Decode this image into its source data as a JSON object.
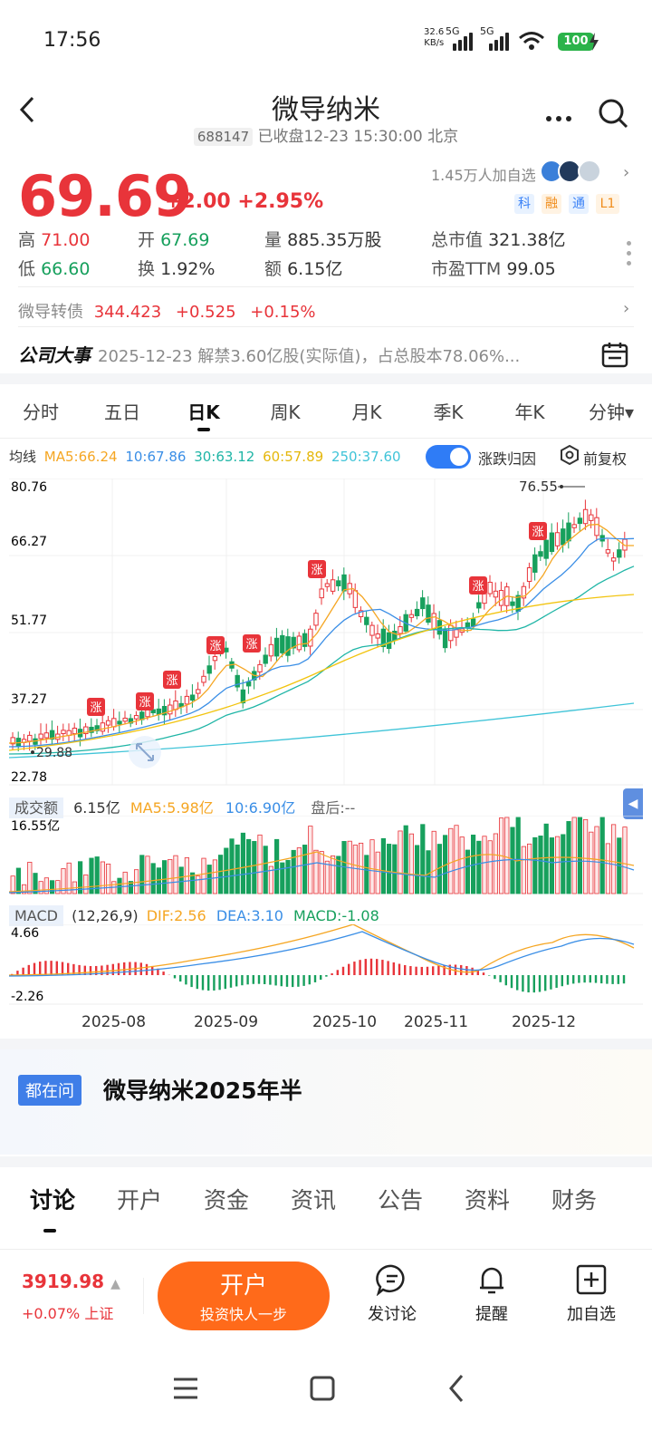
{
  "status": {
    "time": "17:56",
    "net_speed": "32.6",
    "net_unit": "KB/s",
    "net_type1": "5G",
    "net_type2": "5G",
    "battery": "100"
  },
  "header": {
    "name": "微导纳米",
    "code": "688147",
    "status_text": "已收盘12-23 15:30:00 北京"
  },
  "quote": {
    "price": "69.69",
    "change": "+2.00",
    "change_pct": "+2.95%",
    "watchers": "1.45万人加自选",
    "tags": [
      "科",
      "融",
      "通",
      "L1"
    ],
    "high_label": "高",
    "high": "71.00",
    "open_label": "开",
    "open": "67.69",
    "volume_label": "量",
    "volume": "885.35万股",
    "mktcap_label": "总市值",
    "mktcap": "321.38亿",
    "low_label": "低",
    "low": "66.60",
    "turnover_label": "换",
    "turnover": "1.92%",
    "amount_label": "额",
    "amount": "6.15亿",
    "pe_label": "市盈TTM",
    "pe": "99.05"
  },
  "convertible": {
    "name": "微导转债",
    "price": "344.423",
    "change": "+0.525",
    "change_pct": "+0.15%"
  },
  "event": {
    "label": "公司大事",
    "text": "2025-12-23 解禁3.60亿股(实际值)，占总股本78.06%..."
  },
  "period_tabs": [
    "分时",
    "五日",
    "日K",
    "周K",
    "月K",
    "季K",
    "年K",
    "分钟▾"
  ],
  "ma_legend": {
    "label": "均线",
    "ma5": "MA5:66.24",
    "ma10": "10:67.86",
    "ma30": "30:63.12",
    "ma60": "60:57.89",
    "ma250": "250:37.60",
    "toggle_label": "涨跌归因",
    "fuquan_label": "前复权"
  },
  "kline": {
    "y_ticks": [
      "80.76",
      "66.27",
      "51.77",
      "37.27",
      "22.78"
    ],
    "max_label": "76.55",
    "min_label": "29.88",
    "badge": "涨"
  },
  "volume": {
    "label": "成交额",
    "value": "6.15亿",
    "ma5": "MA5:5.98亿",
    "ma10": "10:6.90亿",
    "after": "盘后:--",
    "max_tick": "16.55亿"
  },
  "macd": {
    "label": "MACD",
    "params": "(12,26,9)",
    "dif": "DIF:2.56",
    "dea": "DEA:3.10",
    "macd": "MACD:-1.08",
    "top_tick": "4.66",
    "bottom_tick": "-2.26"
  },
  "x_axis": [
    "2025-08",
    "2025-09",
    "2025-10",
    "2025-11",
    "2025-12"
  ],
  "ask": {
    "tag": "都在问",
    "title": "微导纳米2025年半"
  },
  "bottom_tabs": [
    "讨论",
    "开户",
    "资金",
    "资讯",
    "公告",
    "资料",
    "财务"
  ],
  "action_bar": {
    "index_value": "3919.98",
    "index_change": "+0.07% 上证",
    "open_main": "开户",
    "open_sub": "投资快人一步",
    "discuss": "发讨论",
    "remind": "提醒",
    "watch": "加自选"
  },
  "colors": {
    "up": "#e8343a",
    "down": "#17a05d",
    "ma5": "#f5a623",
    "ma10": "#3a8ee6",
    "ma30": "#1fb5a6",
    "ma60": "#f2c40f",
    "ma250": "#40c4d8",
    "accent": "#ff6a1a"
  }
}
